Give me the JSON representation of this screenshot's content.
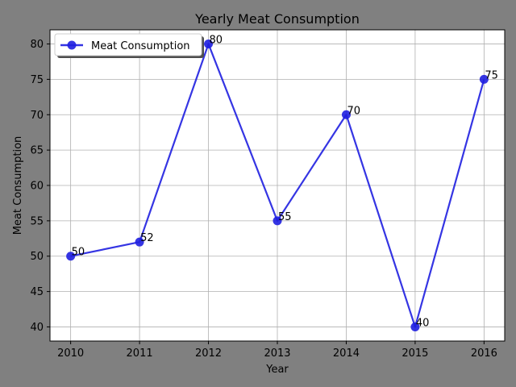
{
  "chart_data": {
    "type": "line",
    "title": "Yearly Meat Consumption",
    "xlabel": "Year",
    "ylabel": "Meat Consumption",
    "x": [
      2010,
      2011,
      2012,
      2013,
      2014,
      2015,
      2016
    ],
    "series": [
      {
        "name": "Meat Consumption",
        "values": [
          50,
          52,
          80,
          55,
          70,
          40,
          75
        ],
        "color": "#1f1fe0",
        "marker": "circle"
      }
    ],
    "data_labels": [
      "50",
      "52",
      "80",
      "55",
      "70",
      "40",
      "75"
    ],
    "xticks": [
      "2010",
      "2011",
      "2012",
      "2013",
      "2014",
      "2015",
      "2016"
    ],
    "yticks": [
      "40",
      "45",
      "50",
      "55",
      "60",
      "65",
      "70",
      "75",
      "80"
    ],
    "xlim": [
      2009.7,
      2016.3
    ],
    "ylim": [
      38,
      82
    ],
    "grid": true,
    "legend_position": "top-left",
    "background_color": "#808080",
    "plot_background_color": "#ffffff"
  }
}
